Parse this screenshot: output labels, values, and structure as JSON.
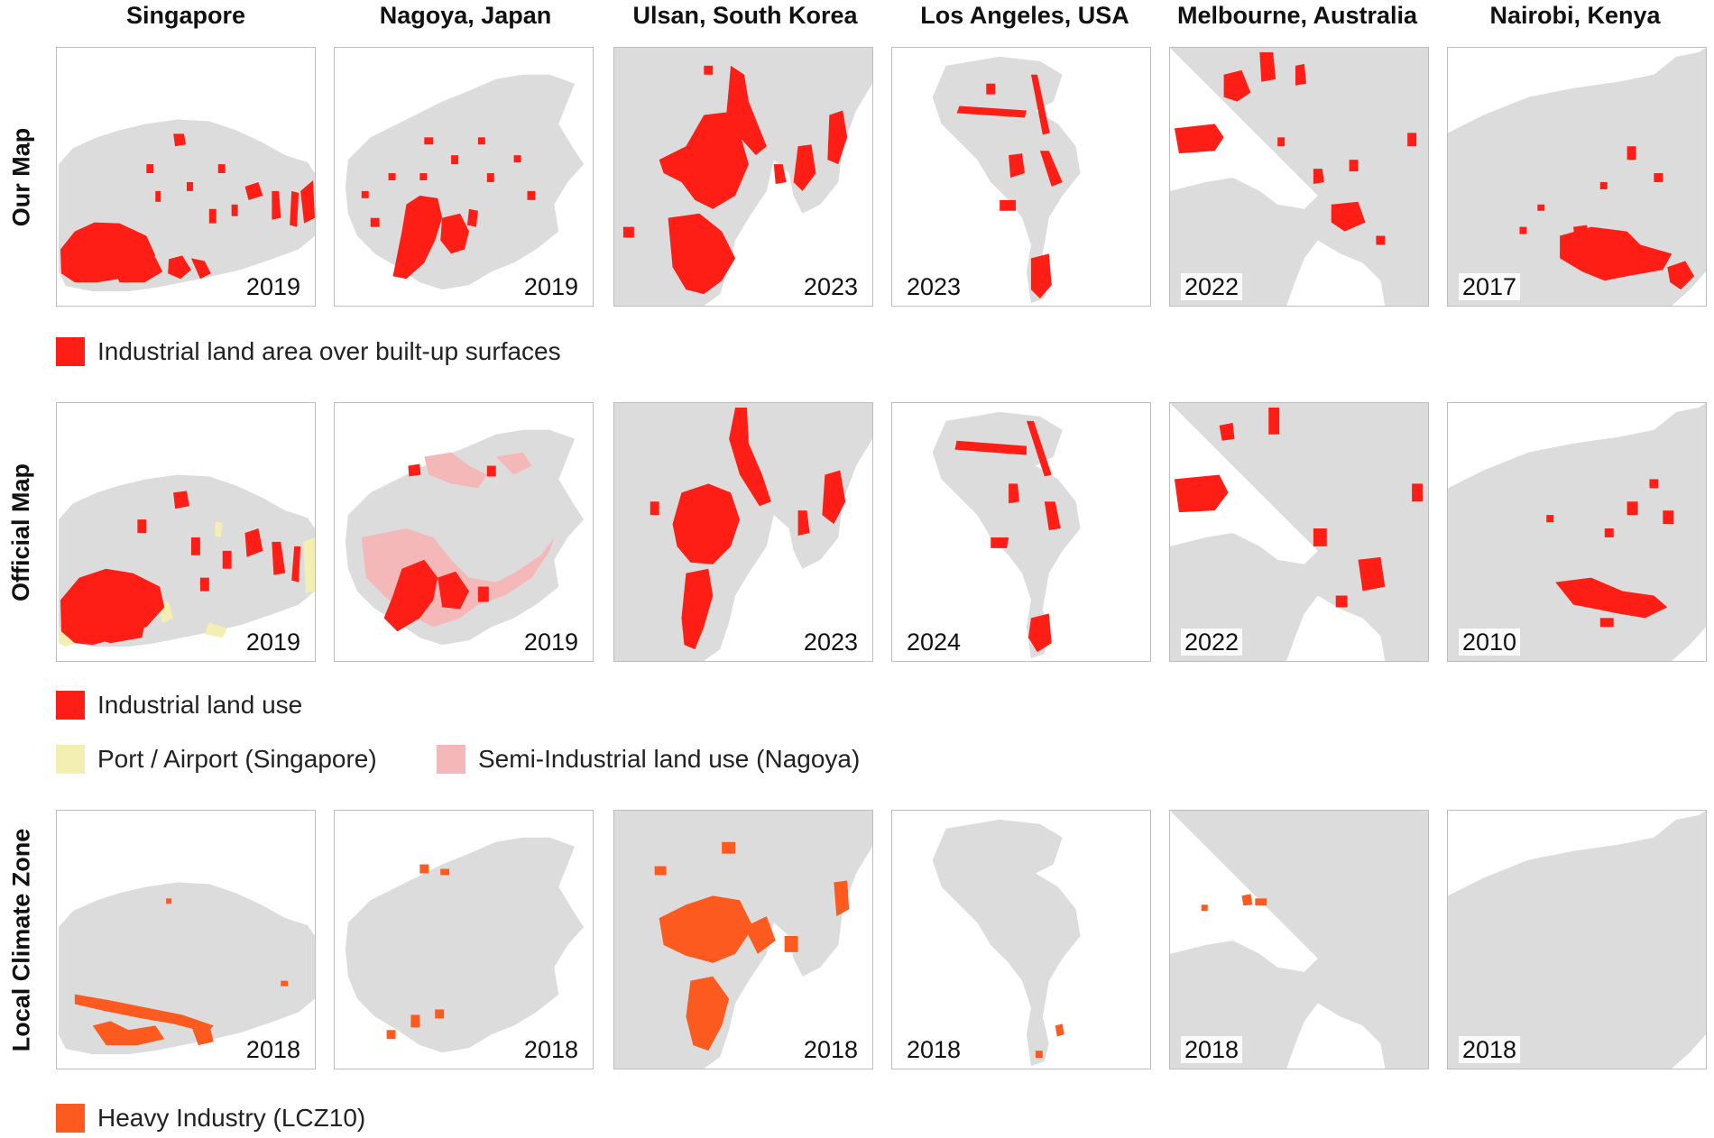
{
  "cities": [
    "Singapore",
    "Nagoya, Japan",
    "Ulsan, South Korea",
    "Los Angeles, USA",
    "Melbourne, Australia",
    "Nairobi, Kenya"
  ],
  "rows": [
    {
      "label": "Our Map",
      "years": [
        "2019",
        "2019",
        "2023",
        "2023",
        "2022",
        "2017"
      ]
    },
    {
      "label": "Official Map",
      "years": [
        "2019",
        "2019",
        "2023",
        "2024",
        "2022",
        "2010"
      ]
    },
    {
      "label": "Local Climate Zone",
      "years": [
        "2018",
        "2018",
        "2018",
        "2018",
        "2018",
        "2018"
      ]
    }
  ],
  "legends": {
    "our_map": {
      "label": "Industrial land area over built-up surfaces",
      "color": "#ff1e16"
    },
    "official_industrial": {
      "label": "Industrial land use",
      "color": "#ff1e16"
    },
    "official_port": {
      "label": "Port / Airport (Singapore)",
      "color": "#f3eeb2"
    },
    "official_semi": {
      "label": "Semi-Industrial land use (Nagoya)",
      "color": "#f4b8b8"
    },
    "lcz": {
      "label": "Heavy Industry (LCZ10)",
      "color": "#fc5a1f"
    }
  },
  "colors": {
    "built_up_land": "#dcdcdc",
    "panel_border": "#bdbdbd"
  }
}
